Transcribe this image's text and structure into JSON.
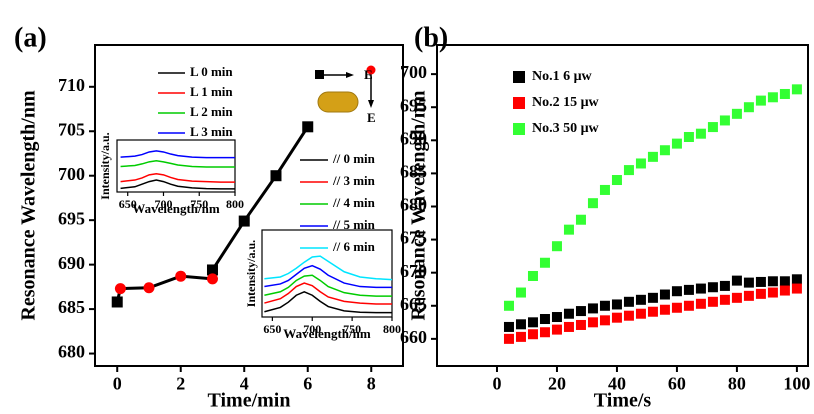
{
  "chart_data": [
    {
      "type": "scatter-line",
      "panel_label": "(a)",
      "xlabel": "Time/min",
      "ylabel": "Resonance Wavelength/nm",
      "xlim": [
        -0.7,
        9
      ],
      "xticks": [
        0,
        2,
        4,
        6,
        8
      ],
      "ylim": [
        678.6,
        714.7
      ],
      "yticks": [
        680,
        685,
        690,
        695,
        700,
        705,
        710
      ],
      "series": [
        {
          "color": "#000000",
          "marker": "square",
          "x": [
            0,
            3,
            4,
            5,
            6
          ],
          "values": [
            685.8,
            689.4,
            694.9,
            700,
            705.5
          ]
        },
        {
          "color": "#ff0000",
          "marker": "circle",
          "x": [
            0.1,
            1,
            2,
            3
          ],
          "values": [
            687.3,
            687.4,
            688.7,
            688.4
          ]
        }
      ],
      "annotations": [
        "E",
        "E"
      ]
    },
    {
      "type": "line",
      "xlabel": "Wavelength/nm",
      "ylabel": "Intensity/a.u.",
      "xlim": [
        635,
        800
      ],
      "xticks": [
        650,
        700,
        750,
        800
      ],
      "ylim": [
        0,
        10
      ],
      "x": [
        640,
        660,
        670,
        680,
        690,
        700,
        710,
        720,
        740,
        760,
        780,
        800
      ],
      "series": [
        {
          "name": "L 0 min",
          "color": "#000000",
          "values": [
            0.7,
            1.0,
            1.5,
            2.0,
            2.3,
            2.0,
            1.5,
            1.1,
            0.8,
            0.65,
            0.6,
            0.6
          ]
        },
        {
          "name": "L 1 min",
          "color": "#ff0000",
          "values": [
            2.0,
            2.3,
            2.7,
            3.3,
            3.5,
            3.3,
            2.8,
            2.4,
            2.1,
            2.0,
            1.9,
            1.9
          ]
        },
        {
          "name": "L 2 min",
          "color": "#00cc00",
          "values": [
            4.9,
            5.1,
            5.4,
            5.8,
            6.0,
            5.8,
            5.5,
            5.2,
            4.9,
            4.8,
            4.8,
            4.8
          ]
        },
        {
          "name": "L 3 min",
          "color": "#0000ff",
          "values": [
            6.7,
            6.9,
            7.2,
            7.7,
            7.9,
            7.7,
            7.3,
            7.0,
            6.7,
            6.6,
            6.6,
            6.6
          ]
        }
      ]
    },
    {
      "type": "line",
      "xlabel": "Wavelength/nm",
      "ylabel": "Intensity/a.u.",
      "xlim": [
        637,
        800
      ],
      "xticks": [
        650,
        700,
        750,
        800
      ],
      "ylim": [
        0,
        10
      ],
      "x": [
        640,
        660,
        670,
        680,
        690,
        700,
        710,
        720,
        740,
        760,
        780,
        800
      ],
      "series": [
        {
          "name": "// 0 min",
          "color": "#000000",
          "values": [
            0.6,
            1.1,
            1.7,
            2.5,
            2.9,
            2.5,
            1.8,
            1.2,
            0.7,
            0.55,
            0.5,
            0.5
          ]
        },
        {
          "name": "// 3 min",
          "color": "#ff0000",
          "values": [
            1.6,
            2.1,
            2.7,
            3.5,
            3.9,
            3.6,
            2.9,
            2.3,
            1.8,
            1.6,
            1.5,
            1.5
          ]
        },
        {
          "name": "// 4 min",
          "color": "#00cc00",
          "values": [
            2.5,
            2.9,
            3.4,
            4.2,
            4.7,
            4.8,
            4.2,
            3.5,
            2.8,
            2.5,
            2.4,
            2.4
          ]
        },
        {
          "name": "// 5 min",
          "color": "#0000ff",
          "values": [
            3.5,
            3.8,
            4.2,
            4.9,
            5.6,
            5.9,
            5.5,
            4.8,
            3.9,
            3.5,
            3.4,
            3.4
          ]
        },
        {
          "name": "// 6 min",
          "color": "#00e5ff",
          "values": [
            4.4,
            4.6,
            5.0,
            5.6,
            6.3,
            6.9,
            7.0,
            6.4,
            5.2,
            4.6,
            4.4,
            4.3
          ]
        }
      ]
    },
    {
      "type": "scatter",
      "panel_label": "(b)",
      "xlabel": "Time/s",
      "ylabel": "Resonance Wavelength/nm",
      "xlim": [
        -20,
        103.7
      ],
      "xticks": [
        0,
        20,
        40,
        60,
        80,
        100
      ],
      "ylim": [
        655.9,
        704.4
      ],
      "yticks": [
        660,
        665,
        670,
        675,
        680,
        685,
        690,
        695,
        700
      ],
      "x": [
        4,
        8,
        12,
        16,
        20,
        24,
        28,
        32,
        36,
        40,
        44,
        48,
        52,
        56,
        60,
        64,
        68,
        72,
        76,
        80,
        84,
        88,
        92,
        96,
        100
      ],
      "series": [
        {
          "name": "No.1 6  μw",
          "color": "#000000",
          "values": [
            661.8,
            662.2,
            662.5,
            663,
            663.3,
            663.8,
            664.2,
            664.6,
            665,
            665.2,
            665.6,
            665.9,
            666.2,
            666.7,
            667.2,
            667.4,
            667.6,
            667.8,
            668,
            668.8,
            668.5,
            668.6,
            668.7,
            668.7,
            669
          ]
        },
        {
          "name": "No.2 15 μw",
          "color": "#ff0000",
          "values": [
            660,
            660.3,
            660.7,
            661,
            661.4,
            661.8,
            662.1,
            662.5,
            662.8,
            663.2,
            663.5,
            663.8,
            664.1,
            664.4,
            664.7,
            665,
            665.3,
            665.6,
            665.9,
            666.2,
            666.5,
            666.8,
            667,
            667.3,
            667.6
          ]
        },
        {
          "name": "No.3 50 μw",
          "color": "#33ff33",
          "values": [
            665,
            667,
            669.5,
            671.5,
            674,
            676.5,
            678,
            680.5,
            682.5,
            684,
            685.5,
            686.5,
            687.5,
            688.5,
            689.5,
            690.5,
            691,
            692,
            693,
            694,
            695,
            696,
            696.5,
            697,
            697.7
          ]
        }
      ]
    }
  ]
}
